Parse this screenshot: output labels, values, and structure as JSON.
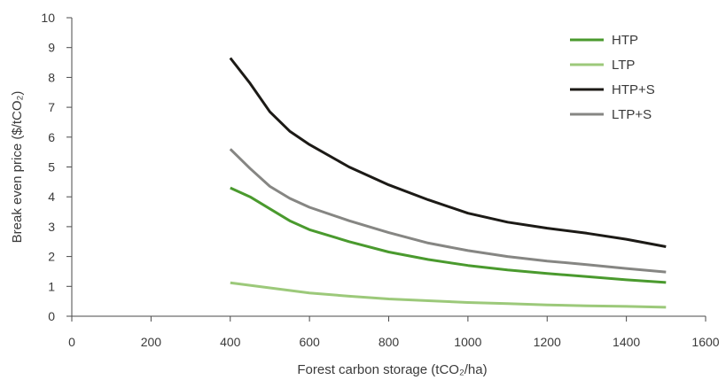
{
  "chart_data": {
    "type": "line",
    "title": "",
    "xlabel": "Forest carbon storage (tCO₂/ha)",
    "ylabel": "Break even price ($/tCO₂)",
    "xlim": [
      0,
      1600
    ],
    "ylim": [
      0,
      10
    ],
    "x_ticks": [
      "0",
      "200",
      "400",
      "600",
      "800",
      "1000",
      "1200",
      "1400",
      "1600"
    ],
    "y_ticks": [
      "0",
      "1",
      "2",
      "3",
      "4",
      "5",
      "6",
      "7",
      "8",
      "9",
      "10"
    ],
    "grid": false,
    "legend_position": "top-right",
    "series": [
      {
        "name": "HTP",
        "color": "#4a9a2e",
        "x": [
          400,
          450,
          500,
          550,
          600,
          700,
          800,
          900,
          1000,
          1100,
          1200,
          1300,
          1400,
          1500
        ],
        "y": [
          4.3,
          4.0,
          3.6,
          3.2,
          2.9,
          2.5,
          2.15,
          1.9,
          1.7,
          1.55,
          1.43,
          1.33,
          1.22,
          1.13
        ]
      },
      {
        "name": "LTP",
        "color": "#9cc97a",
        "x": [
          400,
          500,
          600,
          700,
          800,
          900,
          1000,
          1100,
          1200,
          1300,
          1400,
          1500
        ],
        "y": [
          1.12,
          0.95,
          0.78,
          0.67,
          0.58,
          0.52,
          0.46,
          0.42,
          0.38,
          0.35,
          0.33,
          0.3
        ]
      },
      {
        "name": "HTP+S",
        "color": "#1c1a16",
        "x": [
          400,
          450,
          500,
          550,
          600,
          700,
          800,
          900,
          1000,
          1100,
          1200,
          1300,
          1400,
          1500
        ],
        "y": [
          8.65,
          7.8,
          6.85,
          6.2,
          5.75,
          5.0,
          4.4,
          3.9,
          3.45,
          3.15,
          2.95,
          2.78,
          2.58,
          2.33
        ]
      },
      {
        "name": "LTP+S",
        "color": "#868683",
        "x": [
          400,
          450,
          500,
          550,
          600,
          700,
          800,
          900,
          1000,
          1100,
          1200,
          1300,
          1400,
          1500
        ],
        "y": [
          5.6,
          4.95,
          4.35,
          3.95,
          3.65,
          3.2,
          2.8,
          2.45,
          2.2,
          2.0,
          1.85,
          1.73,
          1.6,
          1.48
        ]
      }
    ]
  }
}
